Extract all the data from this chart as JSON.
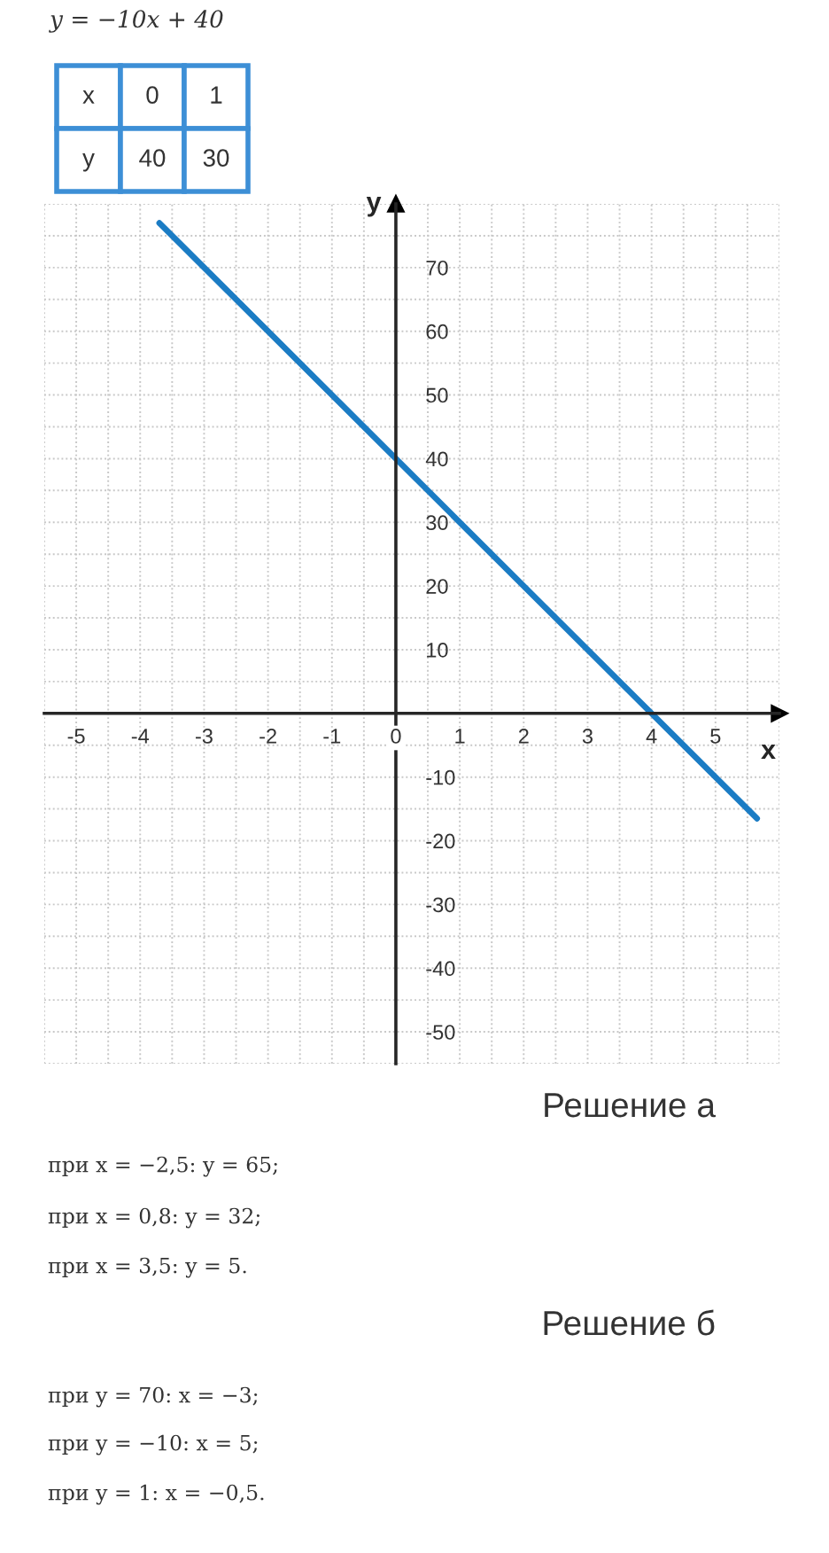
{
  "chart_data": {
    "type": "line",
    "xlabel": "x",
    "ylabel": "y",
    "series": [
      {
        "color": "#1b7cc4",
        "x": [
          -3.7,
          5.65
        ],
        "values": [
          77,
          -16.5
        ]
      }
    ],
    "xlim": [
      -5.5,
      6
    ],
    "ylim": [
      -55,
      80
    ],
    "xticks": [
      -5,
      -4,
      -3,
      -2,
      -1,
      0,
      1,
      2,
      3,
      4,
      5
    ],
    "yticks": [
      -50,
      -40,
      -30,
      -20,
      -10,
      10,
      20,
      30,
      40,
      50,
      60,
      70
    ],
    "grid": true,
    "annotations": [
      "y = −10x + 40",
      "x",
      "0",
      "1",
      "y",
      "40",
      "30",
      "Решение а",
      "при x = −2,5: y = 65;",
      "при x = 0,8: y = 32;",
      "при x = 3,5: y = 5.",
      "Решение б",
      "при y = 70: x = −3;",
      "при y = −10: x = 5;",
      "при y = 1: x = −0,5."
    ]
  }
}
